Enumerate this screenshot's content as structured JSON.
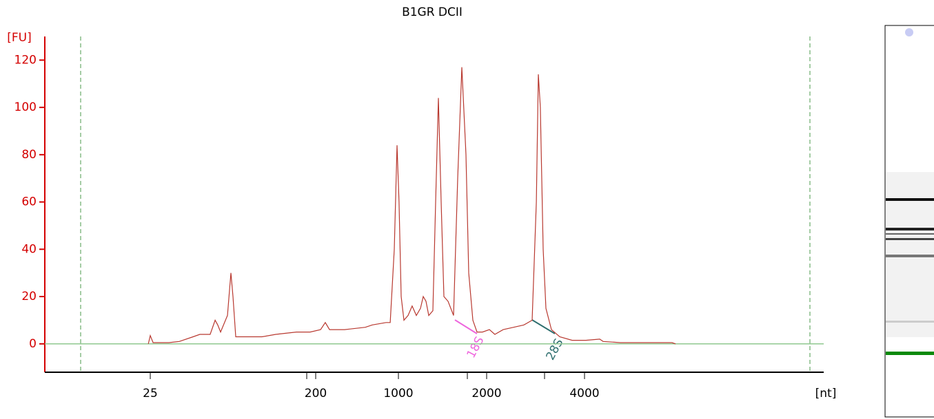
{
  "chart_data": {
    "type": "line",
    "title": "B1GR DCII",
    "ylabel": "[FU]",
    "xlabel": "[nt]",
    "x_scale": "ladder",
    "xlim": [
      6.7,
      21750
    ],
    "xticks": [
      25,
      200,
      1000,
      2000,
      4000
    ],
    "ylim": [
      -12,
      130
    ],
    "yticks": [
      0,
      20,
      40,
      60,
      80,
      100,
      120
    ],
    "axis_color": "#d40000",
    "baseline_color": "#8fc88f",
    "x": [
      24.4,
      25,
      25.9,
      31.6,
      36.0,
      42.8,
      46.6,
      53.1,
      56.5,
      58.4,
      60.5,
      66.0,
      68.9,
      70.7,
      73.2,
      85.6,
      101.8,
      121,
      157,
      186.6,
      220,
      241,
      262,
      351,
      525,
      601,
      786,
      852,
      923,
      974,
      1005,
      1022,
      1044,
      1079,
      1114,
      1151,
      1189,
      1215,
      1242,
      1269,
      1311,
      1340,
      1369,
      1399,
      1430,
      1477,
      1542,
      1593,
      1646,
      1700,
      1737,
      1795,
      1854,
      1936,
      2039,
      2120,
      2249,
      2420,
      2603,
      2760,
      2843,
      2884,
      2926,
      2984,
      3043,
      3164,
      3355,
      3663,
      4039,
      4454,
      4564,
      5155,
      6268,
      7435,
      7620
    ],
    "series": [
      {
        "color": "#b8382f",
        "values": [
          0,
          3.5,
          0.5,
          0.5,
          1,
          3,
          4,
          4,
          10,
          8,
          5,
          12,
          30,
          20,
          3,
          3,
          3,
          4,
          5,
          5,
          6,
          9,
          6,
          6,
          7,
          8,
          9,
          9,
          40,
          84,
          60,
          20,
          10,
          12,
          16,
          12,
          15,
          20,
          18,
          12,
          14,
          60,
          104,
          60,
          20,
          18,
          12,
          70,
          117,
          80,
          30,
          10,
          5,
          5,
          6,
          4,
          6,
          7,
          8,
          10,
          60,
          114,
          100,
          40,
          15,
          6,
          3,
          1.5,
          1.5,
          2,
          1,
          0.5,
          0.5,
          0.5,
          0
        ]
      }
    ],
    "annotations": [
      {
        "text": "18S",
        "color": "#ee66dd"
      },
      {
        "text": "28S",
        "color": "#2f6f6f"
      }
    ]
  }
}
